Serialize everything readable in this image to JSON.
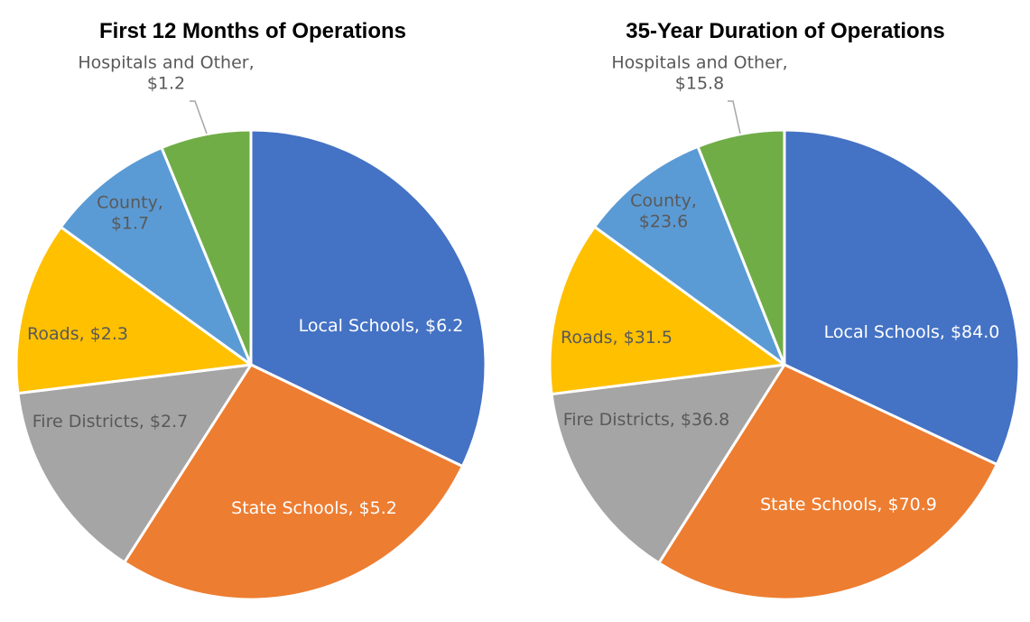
{
  "colors": {
    "local_schools": "#4472C4",
    "state_schools": "#ED7D31",
    "fire_districts": "#A5A5A5",
    "roads": "#FFC000",
    "county": "#5B9BD5",
    "hospitals_other": "#70AD47",
    "label_dark": "#595959",
    "label_light": "#FFFFFF"
  },
  "chart_data": [
    {
      "type": "pie",
      "title": "First 12 Months of Operations",
      "start_angle_deg": 0,
      "direction": "clockwise",
      "slices": [
        {
          "key": "local_schools",
          "name": "Local Schools",
          "value": 6.2,
          "label_lines": [
            "Local Schools, $6.2"
          ],
          "label_color": "light"
        },
        {
          "key": "state_schools",
          "name": "State Schools",
          "value": 5.2,
          "label_lines": [
            "State Schools, $5.2"
          ],
          "label_color": "light"
        },
        {
          "key": "fire_districts",
          "name": "Fire Districts",
          "value": 2.7,
          "label_lines": [
            "Fire Districts, $2.7"
          ],
          "label_color": "dark"
        },
        {
          "key": "roads",
          "name": "Roads",
          "value": 2.3,
          "label_lines": [
            "Roads, $2.3"
          ],
          "label_color": "dark"
        },
        {
          "key": "county",
          "name": "County",
          "value": 1.7,
          "label_lines": [
            "County,",
            "$1.7"
          ],
          "label_color": "dark"
        },
        {
          "key": "hospitals_other",
          "name": "Hospitals and Other",
          "value": 1.2,
          "label_lines": [
            "Hospitals and Other,",
            "$1.2"
          ],
          "label_color": "dark",
          "outside": true
        }
      ]
    },
    {
      "type": "pie",
      "title": "35-Year Duration of Operations",
      "start_angle_deg": 0,
      "direction": "clockwise",
      "slices": [
        {
          "key": "local_schools",
          "name": "Local Schools",
          "value": 84.0,
          "label_lines": [
            "Local Schools, $84.0"
          ],
          "label_color": "light"
        },
        {
          "key": "state_schools",
          "name": "State Schools",
          "value": 70.9,
          "label_lines": [
            "State Schools, $70.9"
          ],
          "label_color": "light"
        },
        {
          "key": "fire_districts",
          "name": "Fire Districts",
          "value": 36.8,
          "label_lines": [
            "Fire Districts, $36.8"
          ],
          "label_color": "dark"
        },
        {
          "key": "roads",
          "name": "Roads",
          "value": 31.5,
          "label_lines": [
            "Roads, $31.5"
          ],
          "label_color": "dark"
        },
        {
          "key": "county",
          "name": "County",
          "value": 23.6,
          "label_lines": [
            "County,",
            "$23.6"
          ],
          "label_color": "dark"
        },
        {
          "key": "hospitals_other",
          "name": "Hospitals and Other",
          "value": 15.8,
          "label_lines": [
            "Hospitals and Other,",
            "$15.8"
          ],
          "label_color": "dark",
          "outside": true
        }
      ]
    }
  ]
}
